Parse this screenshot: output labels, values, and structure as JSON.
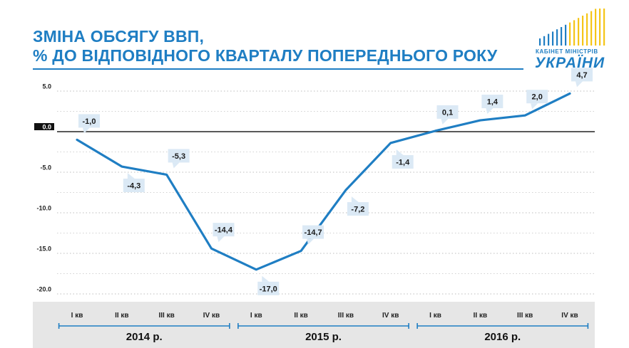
{
  "title_line1": "ЗМІНА ОБСЯГУ ВВП,",
  "title_line2": "% ДО ВІДПОВІДНОГО КВАРТАЛУ ПОПЕРЕДНЬОГО РОКУ",
  "logo": {
    "line1": "КАБІНЕТ МІНІСТРІВ",
    "line2": "УКРАЇНИ",
    "colors": [
      "#1f7ec3",
      "#f5c518"
    ]
  },
  "colors": {
    "accent": "#1f7ec3",
    "label_box": "#dbe9f5",
    "axis_band": "#e6e6e6",
    "zero_label_bg": "#111111"
  },
  "chart_data": {
    "type": "line",
    "title": "ЗМІНА ОБСЯГУ ВВП, % ДО ВІДПОВІДНОГО КВАРТАЛУ ПОПЕРЕДНЬОГО РОКУ",
    "categories": [
      "I кв",
      "II кв",
      "III кв",
      "IV кв",
      "I кв",
      "II кв",
      "III кв",
      "IV кв",
      "I кв",
      "II кв",
      "III кв",
      "IV кв"
    ],
    "groups": [
      {
        "label": "2014 р.",
        "span": [
          0,
          3
        ]
      },
      {
        "label": "2015 р.",
        "span": [
          4,
          7
        ]
      },
      {
        "label": "2016 р.",
        "span": [
          8,
          11
        ]
      }
    ],
    "series": [
      {
        "values": [
          -1.0,
          -4.3,
          -5.3,
          -14.4,
          -17.0,
          -14.7,
          -7.2,
          -1.4,
          0.1,
          1.4,
          2.0,
          4.7
        ],
        "labels": [
          "-1,0",
          "-4,3",
          "-5,3",
          "-14,4",
          "-17,0",
          "-14,7",
          "-7,2",
          "-1,4",
          "0,1",
          "1,4",
          "2,0",
          "4,7"
        ],
        "label_positions": [
          "above",
          "below",
          "above",
          "above",
          "below",
          "above",
          "below",
          "below",
          "above",
          "above",
          "above",
          "above"
        ]
      }
    ],
    "yticks": [
      5.0,
      0.0,
      -5.0,
      -10.0,
      -15.0,
      -20.0
    ],
    "ytick_labels": [
      "5.0",
      "0.0",
      "-5.0",
      "-10.0",
      "-15.0",
      "-20.0"
    ],
    "ylim": [
      -20,
      5
    ],
    "xlabel": "",
    "ylabel": "",
    "grid": true,
    "legend": "none"
  }
}
